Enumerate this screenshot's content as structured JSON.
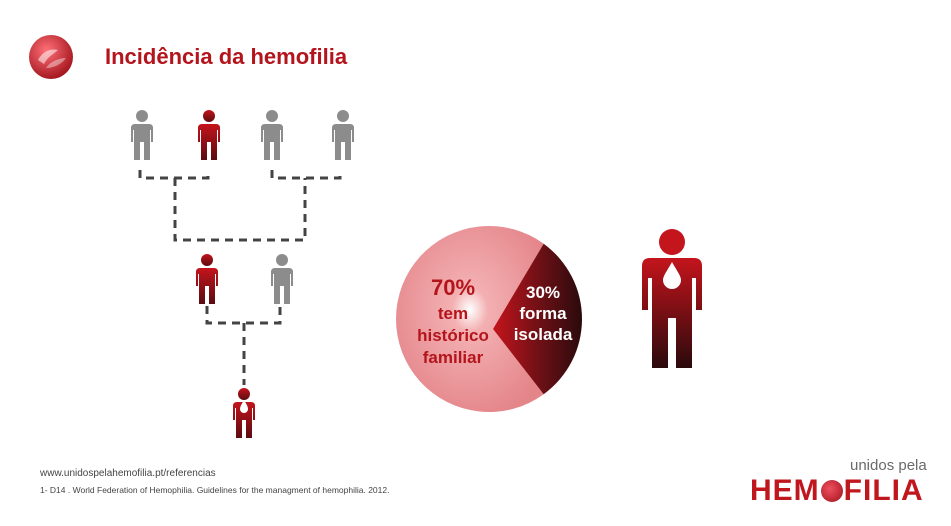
{
  "header": {
    "title": "Incidência da hemofilia"
  },
  "pie": {
    "major_pct": "70%",
    "major_label_line1": "tem",
    "major_label_line2": "histórico",
    "major_label_line3": "familiar",
    "minor_pct": "30%",
    "minor_label_line1": "forma",
    "minor_label_line2": "isolada",
    "values": [
      70,
      30
    ],
    "colors": {
      "major": "#e88a8c",
      "minor": "#3a1214",
      "text_major": "#b4151c",
      "text_minor": "#ffffff"
    }
  },
  "footer": {
    "url": "www.unidospelahemofilia.pt/referencias",
    "citation": "1- D14 . World Federation of Hemophilia. Guidelines for the managment of hemophilia. 2012."
  },
  "brand": {
    "top": "unidos pela",
    "main_left": "HEM",
    "main_right": "FILIA",
    "color": "#c0161d"
  },
  "icons": {
    "logo": "hand-heart-logo-icon",
    "person": "person-icon",
    "drop": "blood-drop-icon"
  }
}
